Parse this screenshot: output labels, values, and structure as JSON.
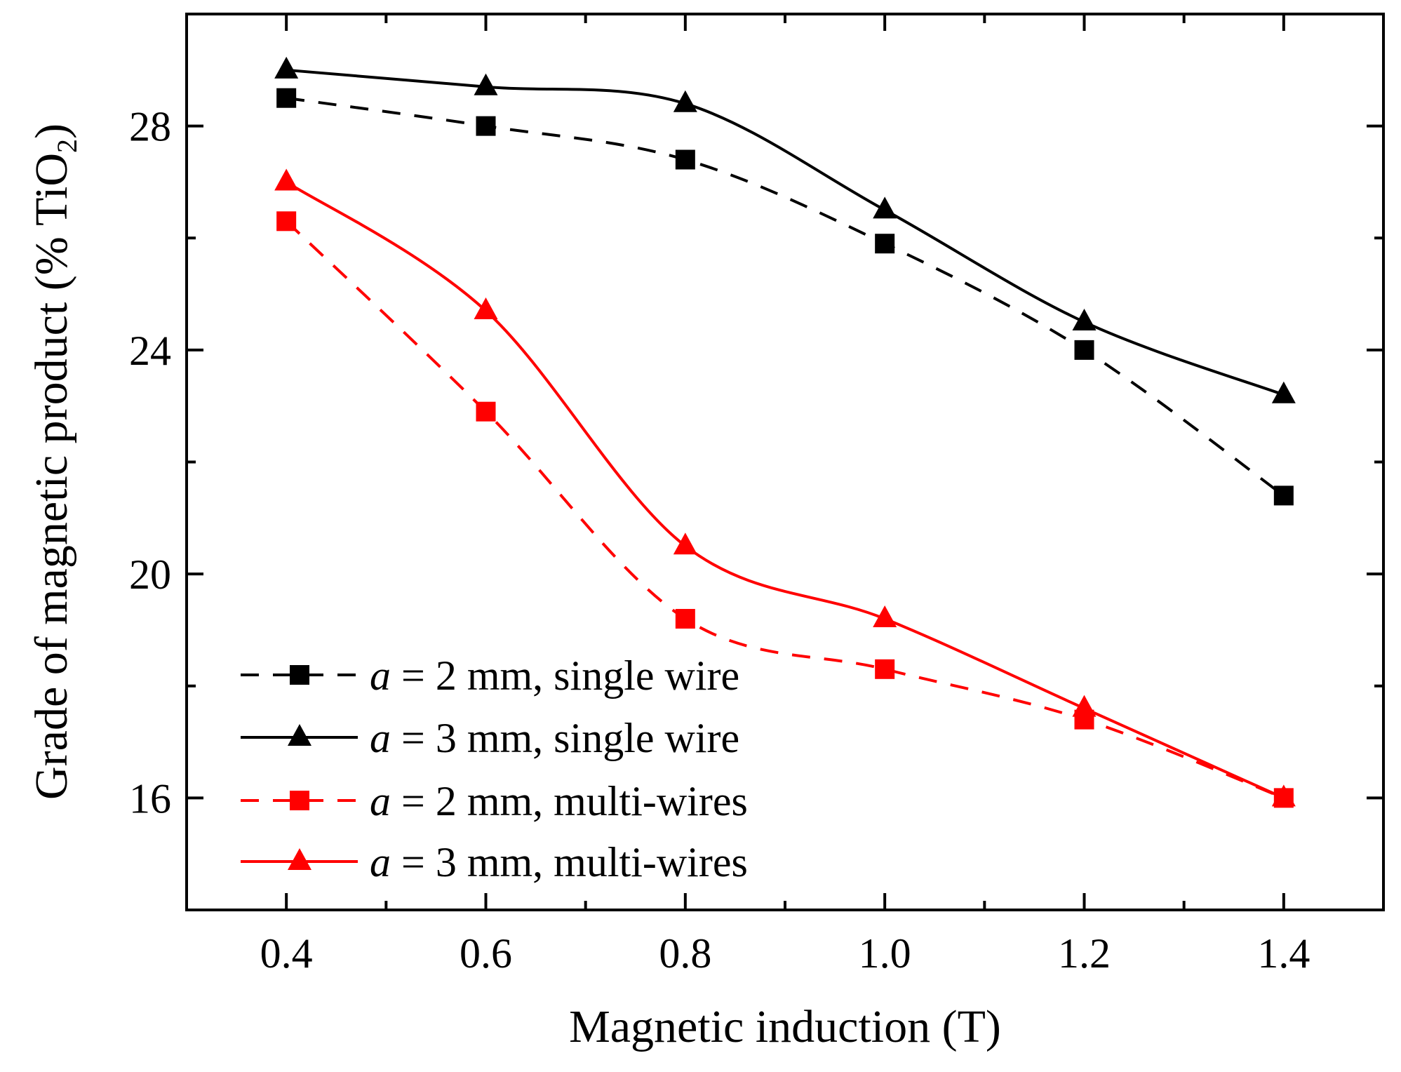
{
  "chart_data": {
    "type": "line",
    "xlabel": "Magnetic induction (T)",
    "ylabel": "Grade of magnetic product (% TiO",
    "ylabel_sub": "2",
    "ylabel_end": ")",
    "xlim": [
      0.3,
      1.5
    ],
    "ylim": [
      14,
      30
    ],
    "x_ticks": [
      0.4,
      0.6,
      0.8,
      1.0,
      1.2,
      1.4
    ],
    "x_tick_labels": [
      "0.4",
      "0.6",
      "0.8",
      "1.0",
      "1.2",
      "1.4"
    ],
    "x_minor_ticks": [
      0.5,
      0.7,
      0.9,
      1.1,
      1.3
    ],
    "y_ticks": [
      16,
      20,
      24,
      28
    ],
    "y_tick_labels": [
      "16",
      "20",
      "24",
      "28"
    ],
    "y_minor_ticks": [
      18,
      22,
      26
    ],
    "grid": false,
    "legend_position": "bottom-left",
    "x": [
      0.4,
      0.6,
      0.8,
      1.0,
      1.2,
      1.4
    ],
    "series": [
      {
        "name": "a = 2 mm, single wire",
        "legend_italic": "a",
        "legend_rest": " = 2 mm, single wire",
        "values": [
          28.5,
          28.0,
          27.4,
          25.9,
          24.0,
          21.4
        ],
        "color": "#000000",
        "dash": true,
        "marker": "square"
      },
      {
        "name": "a = 3 mm, single wire",
        "legend_italic": "a",
        "legend_rest": " = 3 mm, single wire",
        "values": [
          29.0,
          28.7,
          28.4,
          26.5,
          24.5,
          23.2
        ],
        "color": "#000000",
        "dash": false,
        "marker": "triangle"
      },
      {
        "name": "a = 2 mm, multi-wires",
        "legend_italic": "a",
        "legend_rest": " = 2 mm, multi-wires",
        "values": [
          26.3,
          22.9,
          19.2,
          18.3,
          17.4,
          16.0
        ],
        "color": "#ff0000",
        "dash": true,
        "marker": "square"
      },
      {
        "name": "a = 3 mm, multi-wires",
        "legend_italic": "a",
        "legend_rest": " = 3 mm, multi-wires",
        "values": [
          27.0,
          24.7,
          20.5,
          19.2,
          17.6,
          16.0
        ],
        "color": "#ff0000",
        "dash": false,
        "marker": "triangle"
      }
    ]
  }
}
